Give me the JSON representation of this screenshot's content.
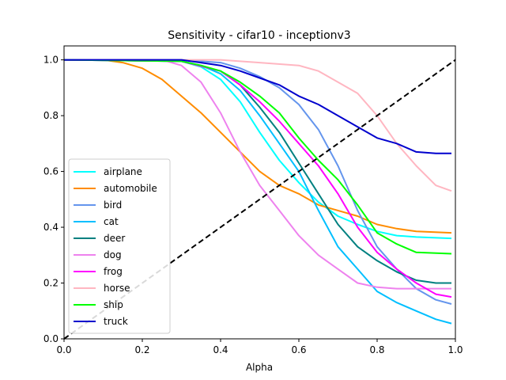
{
  "chart_data": {
    "type": "line",
    "title": "Sensitivity - cifar10 - inceptionv3",
    "xlabel": "Alpha",
    "ylabel": "",
    "xlim": [
      0,
      1
    ],
    "ylim": [
      0,
      1.05
    ],
    "xticks": [
      0.0,
      0.2,
      0.4,
      0.6,
      0.8,
      1.0
    ],
    "yticks": [
      0.0,
      0.2,
      0.4,
      0.6,
      0.8,
      1.0
    ],
    "xtick_labels": [
      "0.0",
      "0.2",
      "0.4",
      "0.6",
      "0.8",
      "1.0"
    ],
    "ytick_labels": [
      "0.0",
      "0.2",
      "0.4",
      "0.6",
      "0.8",
      "1.0"
    ],
    "grid": false,
    "legend_position": "lower-left",
    "series": [
      {
        "name": "airplane",
        "color": "#00ffff",
        "points": [
          [
            0,
            1.0
          ],
          [
            0.2,
            1.0
          ],
          [
            0.3,
            0.995
          ],
          [
            0.35,
            0.975
          ],
          [
            0.4,
            0.93
          ],
          [
            0.45,
            0.85
          ],
          [
            0.5,
            0.74
          ],
          [
            0.55,
            0.64
          ],
          [
            0.6,
            0.56
          ],
          [
            0.65,
            0.49
          ],
          [
            0.7,
            0.44
          ],
          [
            0.75,
            0.41
          ],
          [
            0.8,
            0.385
          ],
          [
            0.85,
            0.37
          ],
          [
            0.9,
            0.365
          ],
          [
            0.99,
            0.36
          ]
        ]
      },
      {
        "name": "automobile",
        "color": "#ff8c00",
        "points": [
          [
            0,
            1.0
          ],
          [
            0.1,
            1.0
          ],
          [
            0.15,
            0.99
          ],
          [
            0.2,
            0.97
          ],
          [
            0.25,
            0.93
          ],
          [
            0.3,
            0.87
          ],
          [
            0.35,
            0.81
          ],
          [
            0.4,
            0.74
          ],
          [
            0.45,
            0.67
          ],
          [
            0.5,
            0.6
          ],
          [
            0.55,
            0.55
          ],
          [
            0.6,
            0.52
          ],
          [
            0.65,
            0.48
          ],
          [
            0.7,
            0.46
          ],
          [
            0.75,
            0.44
          ],
          [
            0.8,
            0.41
          ],
          [
            0.85,
            0.395
          ],
          [
            0.9,
            0.385
          ],
          [
            0.99,
            0.38
          ]
        ]
      },
      {
        "name": "bird",
        "color": "#6495ed",
        "points": [
          [
            0,
            1.0
          ],
          [
            0.3,
            1.0
          ],
          [
            0.4,
            0.99
          ],
          [
            0.45,
            0.97
          ],
          [
            0.5,
            0.94
          ],
          [
            0.55,
            0.9
          ],
          [
            0.6,
            0.84
          ],
          [
            0.65,
            0.75
          ],
          [
            0.7,
            0.62
          ],
          [
            0.75,
            0.46
          ],
          [
            0.8,
            0.33
          ],
          [
            0.85,
            0.25
          ],
          [
            0.9,
            0.18
          ],
          [
            0.95,
            0.14
          ],
          [
            0.99,
            0.125
          ]
        ]
      },
      {
        "name": "cat",
        "color": "#00bfff",
        "points": [
          [
            0,
            1.0
          ],
          [
            0.3,
            0.995
          ],
          [
            0.35,
            0.98
          ],
          [
            0.4,
            0.95
          ],
          [
            0.45,
            0.89
          ],
          [
            0.5,
            0.8
          ],
          [
            0.55,
            0.7
          ],
          [
            0.6,
            0.6
          ],
          [
            0.65,
            0.46
          ],
          [
            0.7,
            0.33
          ],
          [
            0.75,
            0.25
          ],
          [
            0.8,
            0.17
          ],
          [
            0.85,
            0.13
          ],
          [
            0.9,
            0.1
          ],
          [
            0.95,
            0.07
          ],
          [
            0.99,
            0.055
          ]
        ]
      },
      {
        "name": "deer",
        "color": "#008080",
        "points": [
          [
            0,
            1.0
          ],
          [
            0.3,
            0.995
          ],
          [
            0.4,
            0.96
          ],
          [
            0.45,
            0.91
          ],
          [
            0.5,
            0.83
          ],
          [
            0.55,
            0.74
          ],
          [
            0.6,
            0.63
          ],
          [
            0.65,
            0.52
          ],
          [
            0.7,
            0.41
          ],
          [
            0.75,
            0.33
          ],
          [
            0.8,
            0.28
          ],
          [
            0.85,
            0.24
          ],
          [
            0.9,
            0.21
          ],
          [
            0.95,
            0.2
          ],
          [
            0.99,
            0.2
          ]
        ]
      },
      {
        "name": "dog",
        "color": "#ee82ee",
        "points": [
          [
            0,
            1.0
          ],
          [
            0.25,
            1.0
          ],
          [
            0.3,
            0.98
          ],
          [
            0.35,
            0.92
          ],
          [
            0.4,
            0.81
          ],
          [
            0.45,
            0.67
          ],
          [
            0.5,
            0.55
          ],
          [
            0.55,
            0.46
          ],
          [
            0.6,
            0.37
          ],
          [
            0.65,
            0.3
          ],
          [
            0.7,
            0.25
          ],
          [
            0.75,
            0.2
          ],
          [
            0.8,
            0.185
          ],
          [
            0.85,
            0.18
          ],
          [
            0.9,
            0.18
          ],
          [
            0.99,
            0.18
          ]
        ]
      },
      {
        "name": "frog",
        "color": "#ff00ff",
        "points": [
          [
            0,
            1.0
          ],
          [
            0.3,
            0.995
          ],
          [
            0.4,
            0.96
          ],
          [
            0.45,
            0.91
          ],
          [
            0.5,
            0.85
          ],
          [
            0.55,
            0.78
          ],
          [
            0.6,
            0.7
          ],
          [
            0.65,
            0.62
          ],
          [
            0.7,
            0.52
          ],
          [
            0.75,
            0.4
          ],
          [
            0.8,
            0.31
          ],
          [
            0.85,
            0.25
          ],
          [
            0.9,
            0.2
          ],
          [
            0.95,
            0.16
          ],
          [
            0.99,
            0.15
          ]
        ]
      },
      {
        "name": "horse",
        "color": "#ffb6c1",
        "points": [
          [
            0,
            1.0
          ],
          [
            0.4,
            1.0
          ],
          [
            0.5,
            0.99
          ],
          [
            0.6,
            0.98
          ],
          [
            0.65,
            0.96
          ],
          [
            0.7,
            0.92
          ],
          [
            0.75,
            0.88
          ],
          [
            0.8,
            0.8
          ],
          [
            0.85,
            0.7
          ],
          [
            0.9,
            0.62
          ],
          [
            0.95,
            0.55
          ],
          [
            0.99,
            0.53
          ]
        ]
      },
      {
        "name": "ship",
        "color": "#00ff00",
        "points": [
          [
            0,
            1.0
          ],
          [
            0.3,
            0.995
          ],
          [
            0.35,
            0.98
          ],
          [
            0.4,
            0.96
          ],
          [
            0.45,
            0.92
          ],
          [
            0.5,
            0.87
          ],
          [
            0.55,
            0.81
          ],
          [
            0.6,
            0.72
          ],
          [
            0.65,
            0.64
          ],
          [
            0.7,
            0.57
          ],
          [
            0.75,
            0.48
          ],
          [
            0.8,
            0.38
          ],
          [
            0.85,
            0.34
          ],
          [
            0.9,
            0.31
          ],
          [
            0.99,
            0.305
          ]
        ]
      },
      {
        "name": "truck",
        "color": "#0000cd",
        "points": [
          [
            0,
            1.0
          ],
          [
            0.3,
            1.0
          ],
          [
            0.4,
            0.98
          ],
          [
            0.45,
            0.96
          ],
          [
            0.5,
            0.935
          ],
          [
            0.55,
            0.91
          ],
          [
            0.6,
            0.87
          ],
          [
            0.65,
            0.84
          ],
          [
            0.7,
            0.8
          ],
          [
            0.75,
            0.76
          ],
          [
            0.8,
            0.72
          ],
          [
            0.85,
            0.7
          ],
          [
            0.9,
            0.67
          ],
          [
            0.95,
            0.665
          ],
          [
            0.99,
            0.665
          ]
        ]
      }
    ],
    "reference_line": {
      "x": [
        0,
        1
      ],
      "y": [
        0,
        1
      ],
      "color": "#000000",
      "style": "dashed"
    }
  }
}
